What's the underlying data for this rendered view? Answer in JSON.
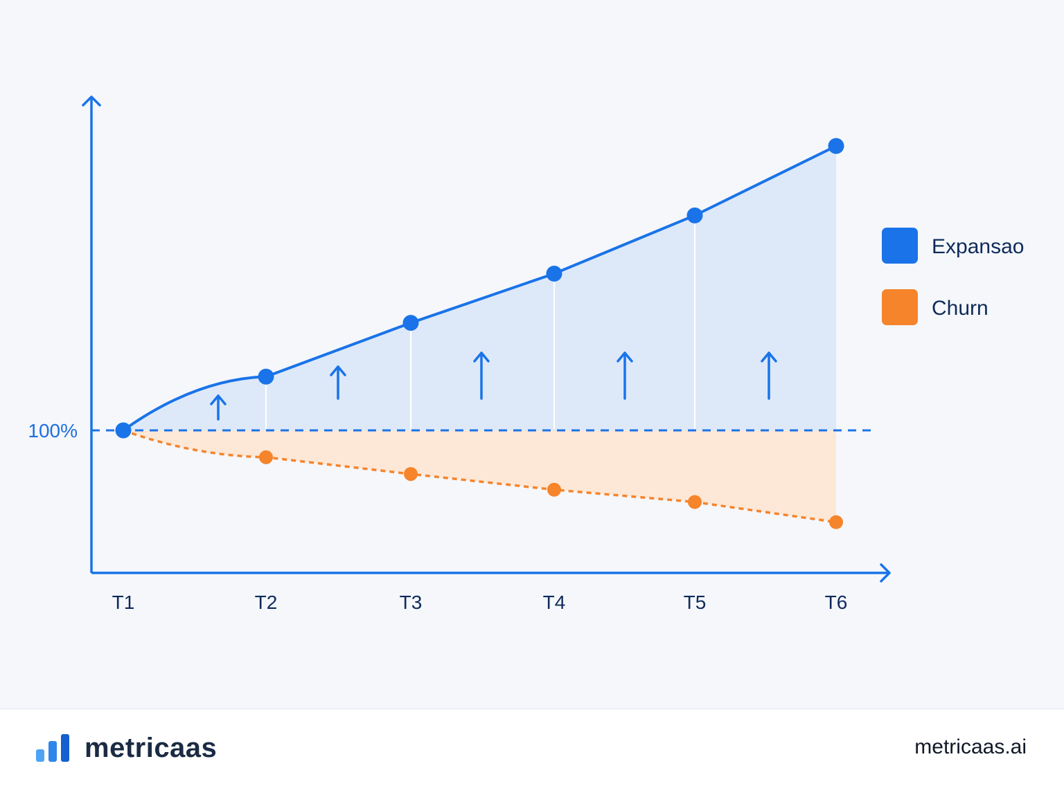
{
  "chart_data": {
    "type": "line",
    "categories": [
      "T1",
      "T2",
      "T3",
      "T4",
      "T5",
      "T6"
    ],
    "reference_label": "100%",
    "series": [
      {
        "name": "Expansao",
        "values": [
          100,
          124,
          148,
          170,
          196,
          227
        ],
        "color": "#1a73e8",
        "style": "solid",
        "fill": "area-above-100"
      },
      {
        "name": "Churn",
        "values": [
          100,
          88,
          80.5,
          73.5,
          68,
          59
        ],
        "color": "#f5842b",
        "style": "dashed",
        "fill": "area-below-100"
      }
    ],
    "ylim": [
      30,
      260
    ],
    "legend_position": "right",
    "grid": false,
    "annotations": "upward arrows between points in expansion area"
  },
  "footer": {
    "brand": "metricaas",
    "site": "metricaas.ai"
  },
  "colors": {
    "expansion": "#1a73e8",
    "expansion_fill": "#dde9f9",
    "churn": "#f5842b",
    "churn_fill": "#fde7d6",
    "axis": "#1a73e8",
    "background": "#f5f7fb"
  }
}
